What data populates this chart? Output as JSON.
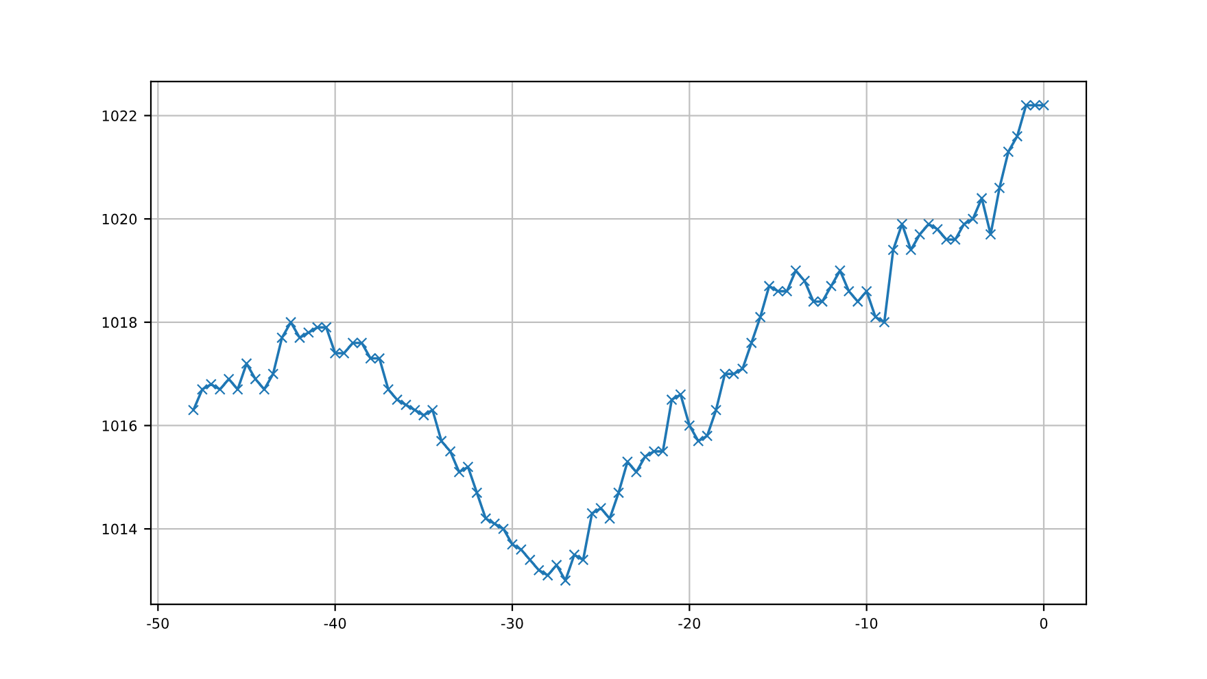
{
  "chart_data": {
    "type": "line",
    "marker": "cross",
    "grid": true,
    "x": [
      -48,
      -47.5,
      -47,
      -46.5,
      -46,
      -45.5,
      -45,
      -44.5,
      -44,
      -43.5,
      -43,
      -42.5,
      -42,
      -41.5,
      -41,
      -40.5,
      -40,
      -39.5,
      -39,
      -38.5,
      -38,
      -37.5,
      -37,
      -36.5,
      -36,
      -35.5,
      -35,
      -34.5,
      -34,
      -33.5,
      -33,
      -32.5,
      -32,
      -31.5,
      -31,
      -30.5,
      -30,
      -29.5,
      -29,
      -28.5,
      -28,
      -27.5,
      -27,
      -26.5,
      -26,
      -25.5,
      -25,
      -24.5,
      -24,
      -23.5,
      -23,
      -22.5,
      -22,
      -21.5,
      -21,
      -20.5,
      -20,
      -19.5,
      -19,
      -18.5,
      -18,
      -17.5,
      -17,
      -16.5,
      -16,
      -15.5,
      -15,
      -14.5,
      -14,
      -13.5,
      -13,
      -12.5,
      -12,
      -11.5,
      -11,
      -10.5,
      -10,
      -9.5,
      -9,
      -8.5,
      -8,
      -7.5,
      -7,
      -6.5,
      -6,
      -5.5,
      -5,
      -4.5,
      -4,
      -3.5,
      -3,
      -2.5,
      -2,
      -1.5,
      -1,
      -0.5,
      0
    ],
    "series": [
      {
        "color": "#1f77b4",
        "values": [
          1016.3,
          1016.7,
          1016.8,
          1016.7,
          1016.9,
          1016.7,
          1017.2,
          1016.9,
          1016.7,
          1017.0,
          1017.7,
          1018.0,
          1017.7,
          1017.8,
          1017.9,
          1017.9,
          1017.4,
          1017.4,
          1017.6,
          1017.6,
          1017.3,
          1017.3,
          1016.7,
          1016.5,
          1016.4,
          1016.3,
          1016.2,
          1016.3,
          1015.7,
          1015.5,
          1015.1,
          1015.2,
          1014.7,
          1014.2,
          1014.1,
          1014.0,
          1013.7,
          1013.6,
          1013.4,
          1013.2,
          1013.1,
          1013.3,
          1013.0,
          1013.5,
          1013.4,
          1014.3,
          1014.4,
          1014.2,
          1014.7,
          1015.3,
          1015.1,
          1015.4,
          1015.5,
          1015.5,
          1016.5,
          1016.6,
          1016.0,
          1015.7,
          1015.8,
          1016.3,
          1017.0,
          1017.0,
          1017.1,
          1017.6,
          1018.1,
          1018.7,
          1018.6,
          1018.6,
          1019.0,
          1018.8,
          1018.4,
          1018.4,
          1018.7,
          1019.0,
          1018.6,
          1018.4,
          1018.6,
          1018.1,
          1018.0,
          1019.4,
          1019.9,
          1019.4,
          1019.7,
          1019.9,
          1019.8,
          1019.6,
          1019.6,
          1019.9,
          1020.0,
          1020.4,
          1019.7,
          1020.6,
          1021.3,
          1021.6,
          1022.2,
          1022.2,
          1022.2
        ]
      }
    ],
    "xlim": [
      -50.4,
      2.4
    ],
    "xticks": [
      -50,
      -40,
      -30,
      -20,
      -10,
      0
    ],
    "ylim": [
      1012.54,
      1022.66
    ],
    "yticks": [
      1014,
      1016,
      1018,
      1020,
      1022
    ]
  }
}
